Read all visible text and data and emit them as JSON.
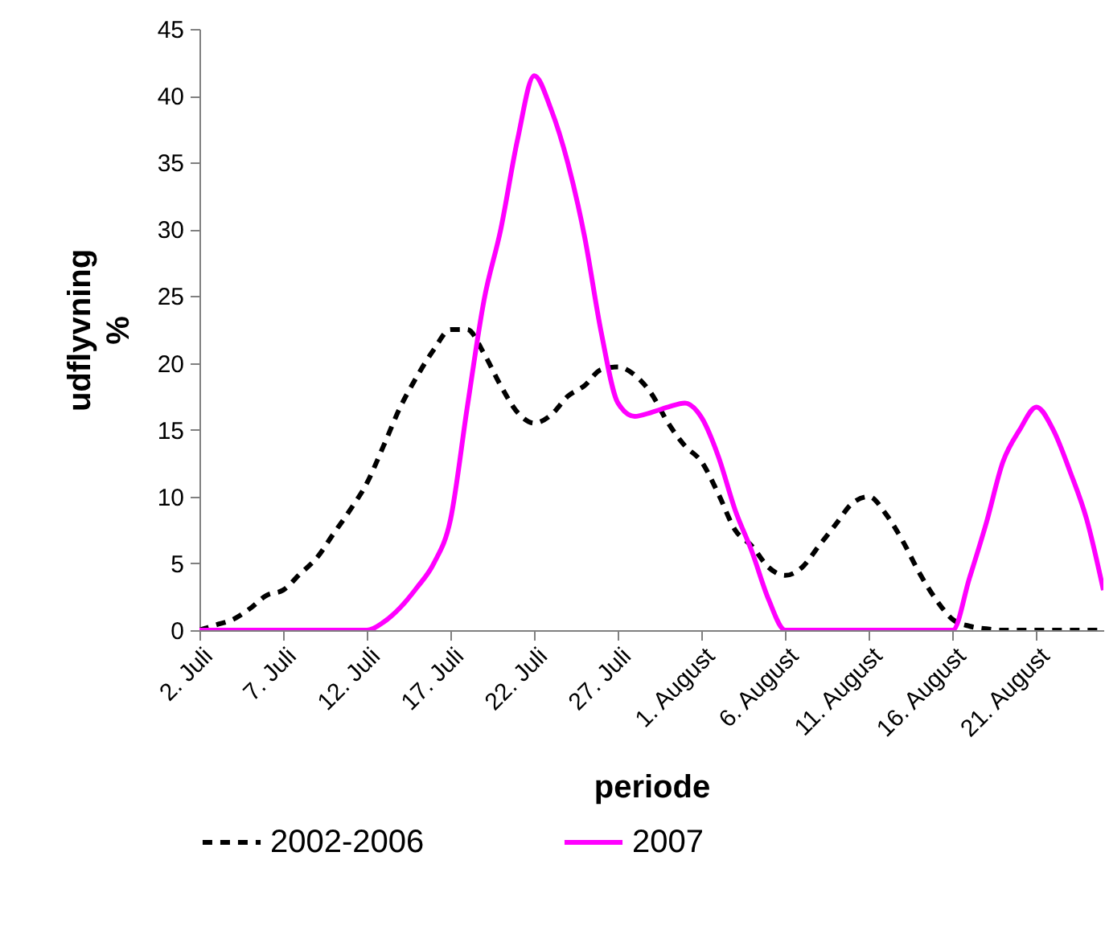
{
  "chart_data": {
    "type": "line",
    "xlabel": "periode",
    "ylabel": "udflyvning\n%",
    "x": [
      "--07-02",
      "--07-03",
      "--07-04",
      "--07-05",
      "--07-06",
      "--07-07",
      "--07-08",
      "--07-09",
      "--07-10",
      "--07-11",
      "--07-12",
      "--07-13",
      "--07-14",
      "--07-15",
      "--07-16",
      "--07-17",
      "--07-18",
      "--07-19",
      "--07-20",
      "--07-21",
      "--07-22",
      "--07-23",
      "--07-24",
      "--07-25",
      "--07-26",
      "--07-27",
      "--07-28",
      "--07-29",
      "--07-30",
      "--07-31",
      "--08-01",
      "--08-02",
      "--08-03",
      "--08-04",
      "--08-05",
      "--08-06",
      "--08-07",
      "--08-08",
      "--08-09",
      "--08-10",
      "--08-11",
      "--08-12",
      "--08-13",
      "--08-14",
      "--08-15",
      "--08-16",
      "--08-17",
      "--08-18",
      "--08-19",
      "--08-20",
      "--08-21",
      "--08-22",
      "--08-23",
      "--08-24",
      "--08-25"
    ],
    "series": [
      {
        "name": "2002-2006",
        "color": "#000000",
        "line_style": "dashed",
        "values": [
          0,
          0.4,
          0.8,
          1.6,
          2.6,
          3,
          4.2,
          5.4,
          7.2,
          9,
          11,
          13.8,
          16.7,
          19,
          21,
          22.5,
          22.5,
          20.7,
          18.3,
          16.3,
          15.5,
          16.1,
          17.5,
          18.3,
          19.5,
          19.7,
          19.1,
          17.7,
          15.5,
          13.8,
          12.6,
          10.2,
          7.5,
          6.3,
          4.7,
          4.1,
          4.7,
          6.3,
          7.9,
          9.5,
          10,
          8.7,
          6.7,
          4.3,
          2.3,
          0.8,
          0.3,
          0.1,
          0,
          0,
          0,
          0,
          0,
          0,
          0
        ]
      },
      {
        "name": "2007",
        "color": "#ff00ff",
        "line_style": "solid",
        "values": [
          0,
          0,
          0,
          0,
          0,
          0,
          0,
          0,
          0,
          0,
          0,
          0.6,
          1.7,
          3.2,
          5,
          8.3,
          16.7,
          24.7,
          30,
          36.7,
          41.5,
          39,
          35,
          29.5,
          22.3,
          17,
          16,
          16.3,
          16.7,
          17,
          15.9,
          13,
          9,
          5.9,
          2.3,
          0,
          0,
          0,
          0,
          0,
          0,
          0,
          0,
          0,
          0,
          0,
          3.9,
          8,
          12.6,
          15,
          16.7,
          15,
          11.9,
          8.3,
          3
        ]
      }
    ],
    "xlim": [
      "--07-02",
      "--08-25"
    ],
    "xticks": [
      {
        "value": "--07-02",
        "label": "2. Juli"
      },
      {
        "value": "--07-07",
        "label": "7. Juli"
      },
      {
        "value": "--07-12",
        "label": "12. Juli"
      },
      {
        "value": "--07-17",
        "label": "17. Juli"
      },
      {
        "value": "--07-22",
        "label": "22. Juli"
      },
      {
        "value": "--07-27",
        "label": "27. Juli"
      },
      {
        "value": "--08-01",
        "label": "1. August"
      },
      {
        "value": "--08-06",
        "label": "6. August"
      },
      {
        "value": "--08-11",
        "label": "11. August"
      },
      {
        "value": "--08-16",
        "label": "16. August"
      },
      {
        "value": "--08-21",
        "label": "21. August"
      }
    ],
    "ylim": [
      0,
      45
    ],
    "yticks": [
      0,
      5,
      10,
      15,
      20,
      25,
      30,
      35,
      40,
      45
    ],
    "grid": false,
    "legend": "bottom",
    "marker": "none"
  }
}
